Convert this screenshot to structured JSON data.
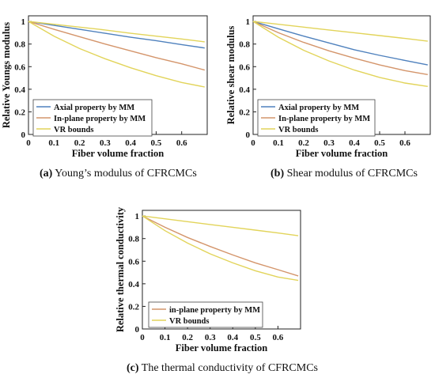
{
  "chart_data": [
    {
      "id": "a",
      "type": "line",
      "xlabel": "Fiber volume fraction",
      "ylabel": "Relative Youngs modulus",
      "xlim": [
        0,
        0.7
      ],
      "ylim": [
        0,
        1.05
      ],
      "xticks": [
        "0",
        "0.1",
        "0.2",
        "0.3",
        "0.4",
        "0.5",
        "0.6"
      ],
      "yticks": [
        "0",
        "0.2",
        "0.4",
        "0.6",
        "0.8",
        "1"
      ],
      "legend_position": "bottom-left",
      "legend_items": [
        {
          "label": "Axial property by MM",
          "color": "#4f81bd"
        },
        {
          "label": "In-plane property by MM",
          "color": "#d4956b"
        },
        {
          "label": "VR bounds",
          "color": "#e2d45a"
        }
      ],
      "series": [
        {
          "name": "Axial property by MM",
          "color": "#4f81bd",
          "x": [
            0,
            0.1,
            0.2,
            0.3,
            0.4,
            0.5,
            0.6,
            0.69
          ],
          "y": [
            1,
            0.965,
            0.93,
            0.895,
            0.86,
            0.83,
            0.795,
            0.765
          ]
        },
        {
          "name": "In-plane property by MM",
          "color": "#d4956b",
          "x": [
            0,
            0.1,
            0.2,
            0.3,
            0.4,
            0.5,
            0.6,
            0.69
          ],
          "y": [
            1,
            0.93,
            0.865,
            0.8,
            0.74,
            0.68,
            0.625,
            0.57
          ]
        },
        {
          "name": "VR bounds",
          "color": "#e2d45a",
          "x": [
            0,
            0.1,
            0.2,
            0.3,
            0.4,
            0.5,
            0.6,
            0.69
          ],
          "y": [
            1,
            0.975,
            0.95,
            0.925,
            0.895,
            0.87,
            0.845,
            0.82
          ]
        },
        {
          "name": "",
          "color": "#e2d45a",
          "x": [
            0,
            0.1,
            0.2,
            0.3,
            0.4,
            0.5,
            0.6,
            0.69
          ],
          "y": [
            1,
            0.87,
            0.76,
            0.67,
            0.59,
            0.52,
            0.46,
            0.42
          ]
        }
      ]
    },
    {
      "id": "b",
      "type": "line",
      "xlabel": "Fiber volume fraction",
      "ylabel": "Relative shear modulus",
      "xlim": [
        0,
        0.7
      ],
      "ylim": [
        0,
        1.05
      ],
      "xticks": [
        "0",
        "0.1",
        "0.2",
        "0.3",
        "0.4",
        "0.5",
        "0.6"
      ],
      "yticks": [
        "0",
        "0.2",
        "0.4",
        "0.6",
        "0.8",
        "1"
      ],
      "legend_position": "bottom-left",
      "legend_items": [
        {
          "label": "Axial property by MM",
          "color": "#4f81bd"
        },
        {
          "label": "In-plane property by MM",
          "color": "#d4956b"
        },
        {
          "label": "VR bounds",
          "color": "#e2d45a"
        }
      ],
      "series": [
        {
          "name": "Axial property by MM",
          "color": "#4f81bd",
          "x": [
            0,
            0.1,
            0.2,
            0.3,
            0.4,
            0.5,
            0.6,
            0.69
          ],
          "y": [
            1,
            0.935,
            0.87,
            0.81,
            0.75,
            0.7,
            0.655,
            0.615
          ]
        },
        {
          "name": "In-plane property by MM",
          "color": "#d4956b",
          "x": [
            0,
            0.1,
            0.2,
            0.3,
            0.4,
            0.5,
            0.6,
            0.69
          ],
          "y": [
            1,
            0.9,
            0.815,
            0.74,
            0.675,
            0.615,
            0.565,
            0.53
          ]
        },
        {
          "name": "VR bounds",
          "color": "#e2d45a",
          "x": [
            0,
            0.1,
            0.2,
            0.3,
            0.4,
            0.5,
            0.6,
            0.69
          ],
          "y": [
            1,
            0.975,
            0.95,
            0.925,
            0.9,
            0.875,
            0.85,
            0.825
          ]
        },
        {
          "name": "",
          "color": "#e2d45a",
          "x": [
            0,
            0.1,
            0.2,
            0.3,
            0.4,
            0.5,
            0.6,
            0.69
          ],
          "y": [
            1,
            0.86,
            0.745,
            0.65,
            0.57,
            0.505,
            0.455,
            0.425
          ]
        }
      ]
    },
    {
      "id": "c",
      "type": "line",
      "xlabel": "Fiber volume fraction",
      "ylabel": "Relative thermal conductivity",
      "xlim": [
        0,
        0.7
      ],
      "ylim": [
        0,
        1.05
      ],
      "xticks": [
        "0",
        "0.1",
        "0.2",
        "0.3",
        "0.4",
        "0.5",
        "0.6"
      ],
      "yticks": [
        "0",
        "0.2",
        "0.4",
        "0.6",
        "0.8",
        "1"
      ],
      "legend_position": "bottom-left",
      "legend_items": [
        {
          "label": "in-plane property by MM",
          "color": "#d4956b"
        },
        {
          "label": "VR bounds",
          "color": "#e2d45a"
        }
      ],
      "series": [
        {
          "name": "in-plane property by MM",
          "color": "#d4956b",
          "x": [
            0,
            0.1,
            0.2,
            0.3,
            0.4,
            0.5,
            0.6,
            0.69
          ],
          "y": [
            1,
            0.9,
            0.81,
            0.73,
            0.655,
            0.585,
            0.525,
            0.47
          ]
        },
        {
          "name": "VR bounds",
          "color": "#e2d45a",
          "x": [
            0,
            0.1,
            0.2,
            0.3,
            0.4,
            0.5,
            0.6,
            0.69
          ],
          "y": [
            1,
            0.975,
            0.95,
            0.925,
            0.9,
            0.875,
            0.85,
            0.825
          ]
        },
        {
          "name": "",
          "color": "#e2d45a",
          "x": [
            0,
            0.1,
            0.2,
            0.3,
            0.4,
            0.5,
            0.6,
            0.69
          ],
          "y": [
            1,
            0.87,
            0.76,
            0.665,
            0.585,
            0.515,
            0.46,
            0.43
          ]
        }
      ]
    }
  ],
  "captions": {
    "a": {
      "letter": "(a)",
      "text": " Young’s modulus of CFRCMCs"
    },
    "b": {
      "letter": "(b)",
      "text": " Shear modulus of CFRCMCs"
    },
    "c": {
      "letter": "(c)",
      "text": " The thermal conductivity of CFRCMCs"
    }
  }
}
